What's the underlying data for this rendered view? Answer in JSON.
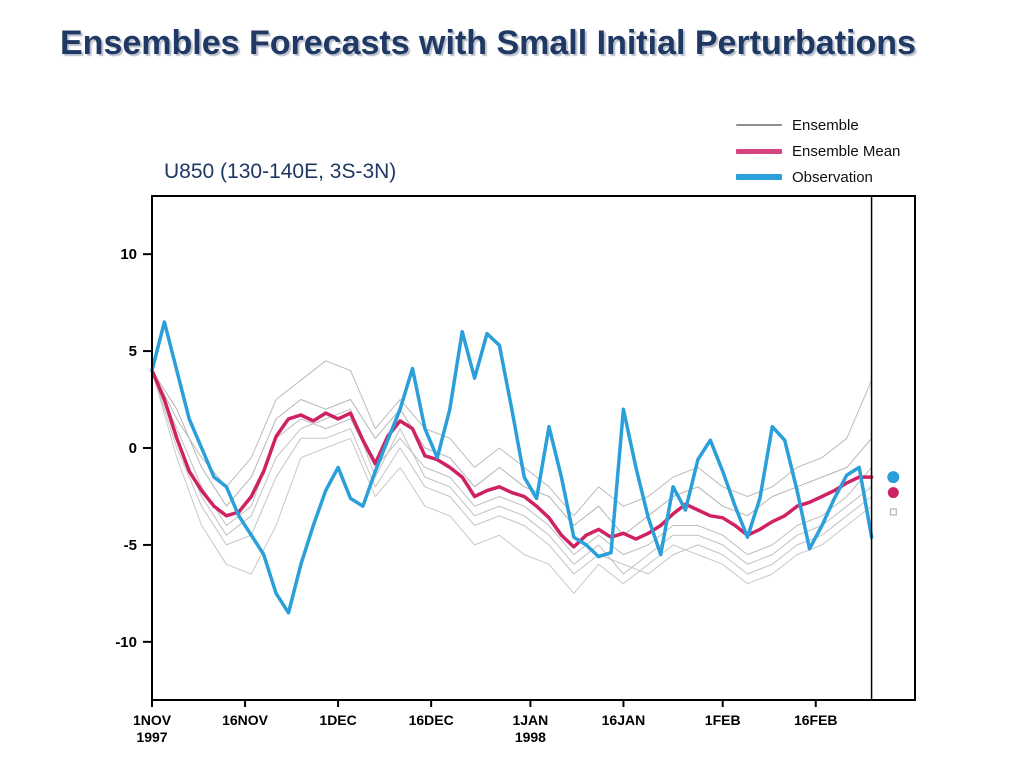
{
  "slide": {
    "title": "Ensembles Forecasts with Small Initial Perturbations"
  },
  "legend": {
    "items": [
      {
        "label": "Ensemble",
        "color": "#8f8f8f",
        "thickness": 2
      },
      {
        "label": "Ensemble Mean",
        "color": "#d6447e",
        "thickness": 5
      },
      {
        "label": "Observation",
        "color": "#2b9fd9",
        "thickness": 6
      }
    ]
  },
  "chart_data": {
    "type": "line",
    "title": "U850 (130-140E, 3S-3N)",
    "xlabel": "",
    "ylabel": "",
    "x_unit": "days since 1 Nov 1997",
    "xlim": [
      0,
      123
    ],
    "ylim": [
      -13,
      13
    ],
    "grid": false,
    "legend_position": "top-right",
    "separator_day": 116,
    "yticks": [
      {
        "value": 10,
        "label": "10"
      },
      {
        "value": 5,
        "label": "5"
      },
      {
        "value": 0,
        "label": "0"
      },
      {
        "value": -5,
        "label": "-5"
      },
      {
        "value": -10,
        "label": "-10"
      }
    ],
    "xticks": [
      {
        "day": 0,
        "label": "1NOV",
        "sub": "1997"
      },
      {
        "day": 15,
        "label": "16NOV",
        "sub": ""
      },
      {
        "day": 30,
        "label": "1DEC",
        "sub": ""
      },
      {
        "day": 45,
        "label": "16DEC",
        "sub": ""
      },
      {
        "day": 61,
        "label": "1JAN",
        "sub": "1998"
      },
      {
        "day": 76,
        "label": "16JAN",
        "sub": ""
      },
      {
        "day": 92,
        "label": "1FEB",
        "sub": ""
      },
      {
        "day": 107,
        "label": "16FEB",
        "sub": ""
      }
    ],
    "series": [
      {
        "name": "Ensemble member 1",
        "role": "ensemble",
        "color": "#bcbcbc",
        "width": 1,
        "x_start": 0,
        "x_step": 4,
        "values": [
          4.0,
          1.5,
          -0.5,
          -2.0,
          -0.5,
          2.5,
          3.5,
          4.5,
          4.0,
          1.0,
          2.5,
          1.0,
          0.5,
          -1.0,
          0.0,
          -1.0,
          -2.0,
          -3.5,
          -2.0,
          -3.0,
          -2.5,
          -1.5,
          -1.0,
          -2.0,
          -2.5,
          -2.0,
          -1.0,
          -0.5,
          0.5,
          3.5
        ]
      },
      {
        "name": "Ensemble member 2",
        "role": "ensemble",
        "color": "#c4c4c4",
        "width": 1,
        "x_start": 0,
        "x_step": 4,
        "values": [
          4.0,
          0.0,
          -3.0,
          -5.0,
          -4.5,
          -1.5,
          0.5,
          0.5,
          1.0,
          -2.0,
          0.0,
          -2.0,
          -2.5,
          -4.0,
          -3.5,
          -4.0,
          -5.0,
          -6.5,
          -5.5,
          -6.0,
          -6.5,
          -5.5,
          -5.0,
          -5.5,
          -6.5,
          -6.0,
          -5.0,
          -4.5,
          -3.5,
          -2.5
        ]
      },
      {
        "name": "Ensemble member 3",
        "role": "ensemble",
        "color": "#b5b5b5",
        "width": 1,
        "x_start": 0,
        "x_step": 4,
        "values": [
          4.0,
          2.0,
          -1.0,
          -3.0,
          -1.5,
          1.5,
          2.5,
          2.0,
          2.5,
          0.5,
          2.0,
          0.0,
          -0.5,
          -2.0,
          -1.0,
          -2.0,
          -2.5,
          -4.0,
          -3.0,
          -4.5,
          -3.5,
          -2.5,
          -2.0,
          -3.0,
          -3.5,
          -2.5,
          -2.0,
          -1.5,
          -1.0,
          0.5
        ]
      },
      {
        "name": "Ensemble member 4",
        "role": "ensemble",
        "color": "#c9c9c9",
        "width": 1,
        "x_start": 0,
        "x_step": 4,
        "values": [
          4.0,
          -0.5,
          -4.0,
          -6.0,
          -6.5,
          -4.0,
          -0.5,
          0.0,
          0.5,
          -2.5,
          -1.0,
          -3.0,
          -3.5,
          -5.0,
          -4.5,
          -5.5,
          -6.0,
          -7.5,
          -6.0,
          -7.0,
          -6.0,
          -5.0,
          -5.5,
          -6.0,
          -7.0,
          -6.5,
          -5.5,
          -5.0,
          -4.0,
          -3.0
        ]
      },
      {
        "name": "Ensemble member 5",
        "role": "ensemble",
        "color": "#bfbfbf",
        "width": 1,
        "x_start": 0,
        "x_step": 4,
        "values": [
          4.0,
          1.0,
          -2.0,
          -4.0,
          -3.0,
          0.5,
          1.5,
          1.0,
          1.5,
          -1.0,
          0.5,
          -1.0,
          -1.5,
          -3.0,
          -2.5,
          -3.0,
          -4.0,
          -5.5,
          -4.5,
          -5.5,
          -5.0,
          -4.0,
          -4.0,
          -4.5,
          -5.5,
          -5.0,
          -4.0,
          -3.5,
          -2.5,
          -1.0
        ]
      },
      {
        "name": "Ensemble member 6",
        "role": "ensemble",
        "color": "#c1c1c1",
        "width": 1,
        "x_start": 0,
        "x_step": 4,
        "values": [
          4.0,
          0.5,
          -2.5,
          -4.5,
          -3.5,
          -0.5,
          1.0,
          1.5,
          2.0,
          -1.5,
          1.0,
          -1.5,
          -2.0,
          -3.5,
          -3.0,
          -3.5,
          -4.5,
          -6.0,
          -5.0,
          -6.5,
          -5.5,
          -4.5,
          -4.5,
          -5.0,
          -6.0,
          -5.5,
          -4.5,
          -4.0,
          -3.0,
          -2.0
        ]
      },
      {
        "name": "Ensemble Mean",
        "role": "mean",
        "color": "#ce2264",
        "width": 3.5,
        "x_start": 0,
        "x_step": 2,
        "values": [
          4.0,
          2.5,
          0.5,
          -1.2,
          -2.2,
          -3.0,
          -3.5,
          -3.3,
          -2.5,
          -1.2,
          0.6,
          1.5,
          1.7,
          1.4,
          1.8,
          1.5,
          1.8,
          0.4,
          -0.8,
          0.6,
          1.4,
          1.0,
          -0.4,
          -0.6,
          -1.0,
          -1.5,
          -2.5,
          -2.2,
          -2.0,
          -2.3,
          -2.5,
          -3.0,
          -3.6,
          -4.5,
          -5.1,
          -4.5,
          -4.2,
          -4.6,
          -4.4,
          -4.7,
          -4.4,
          -4.0,
          -3.4,
          -2.9,
          -3.2,
          -3.5,
          -3.6,
          -4.0,
          -4.5,
          -4.2,
          -3.8,
          -3.5,
          -3.0,
          -2.8,
          -2.5,
          -2.2,
          -1.8,
          -1.5,
          -1.5
        ]
      },
      {
        "name": "Observation",
        "role": "observation",
        "color": "#2b9fd9",
        "width": 3.5,
        "x_start": 0,
        "x_step": 2,
        "values": [
          4.0,
          6.5,
          4.0,
          1.5,
          0.0,
          -1.5,
          -2.0,
          -3.5,
          -4.5,
          -5.5,
          -7.5,
          -8.5,
          -6.0,
          -4.0,
          -2.2,
          -1.0,
          -2.6,
          -3.0,
          -1.2,
          0.4,
          2.0,
          4.1,
          1.0,
          -0.5,
          2.0,
          6.0,
          3.6,
          5.9,
          5.3,
          2.0,
          -1.5,
          -2.6,
          1.1,
          -1.5,
          -4.6,
          -5.0,
          -5.6,
          -5.4,
          2.0,
          -1.0,
          -3.6,
          -5.5,
          -2.0,
          -3.2,
          -0.6,
          0.4,
          -1.2,
          -3.0,
          -4.6,
          -2.6,
          1.1,
          0.4,
          -2.2,
          -5.2,
          -4.0,
          -2.6,
          -1.4,
          -1.0,
          -4.6
        ]
      }
    ],
    "endpoint_markers": [
      {
        "name": "observation-endpoint",
        "day": 119.5,
        "value": -1.5,
        "shape": "circle",
        "color": "#2b9fd9",
        "r": 6
      },
      {
        "name": "ensemble-mean-endpoint",
        "day": 119.5,
        "value": -2.3,
        "shape": "circle",
        "color": "#ce2264",
        "r": 5.5
      },
      {
        "name": "ensemble-endpoint",
        "day": 119.5,
        "value": -3.3,
        "shape": "square-open",
        "color": "#aaaaaa",
        "r": 3
      }
    ]
  }
}
